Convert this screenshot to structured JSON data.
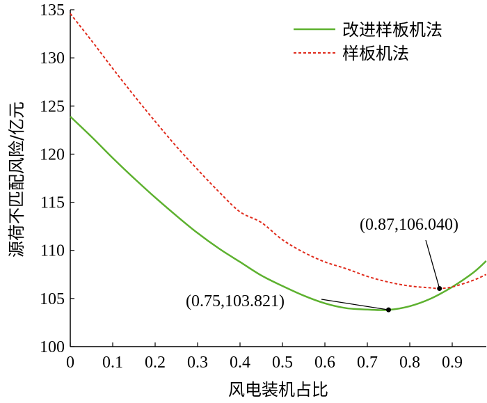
{
  "chart_data": {
    "type": "line",
    "xlabel": "风电装机占比",
    "ylabel": "源荷不匹配风险/亿元",
    "xlim": [
      0,
      0.98
    ],
    "ylim": [
      100,
      135
    ],
    "xticks": [
      "0",
      "0.1",
      "0.2",
      "0.3",
      "0.4",
      "0.5",
      "0.6",
      "0.7",
      "0.8",
      "0.9"
    ],
    "yticks": [
      "100",
      "105",
      "110",
      "115",
      "120",
      "125",
      "130",
      "135"
    ],
    "grid": false,
    "legend": "top-right",
    "series": [
      {
        "name": "改进样板机法",
        "color": "#5db12f",
        "style": "solid",
        "x": [
          0,
          0.05,
          0.1,
          0.15,
          0.2,
          0.25,
          0.3,
          0.35,
          0.4,
          0.45,
          0.5,
          0.55,
          0.6,
          0.65,
          0.7,
          0.75,
          0.8,
          0.85,
          0.9,
          0.95,
          0.98
        ],
        "y": [
          123.9,
          121.8,
          119.6,
          117.5,
          115.5,
          113.6,
          111.8,
          110.2,
          108.8,
          107.4,
          106.3,
          105.3,
          104.5,
          104.0,
          103.85,
          103.82,
          104.2,
          105.0,
          106.2,
          107.7,
          108.9
        ]
      },
      {
        "name": "样板机法",
        "color": "#e02b1c",
        "style": "dashed",
        "x": [
          0,
          0.05,
          0.1,
          0.15,
          0.2,
          0.25,
          0.3,
          0.35,
          0.4,
          0.45,
          0.5,
          0.55,
          0.6,
          0.65,
          0.7,
          0.75,
          0.8,
          0.85,
          0.87,
          0.9,
          0.95,
          0.98
        ],
        "y": [
          134.6,
          131.8,
          128.9,
          126.1,
          123.4,
          120.8,
          118.4,
          116.1,
          114.0,
          112.9,
          111.1,
          109.8,
          108.8,
          108.1,
          107.3,
          106.7,
          106.3,
          106.1,
          106.04,
          106.2,
          106.9,
          107.5
        ]
      }
    ],
    "annotations": [
      {
        "label": "(0.87,106.040)",
        "x": 0.87,
        "y": 106.04
      },
      {
        "label": "(0.75,103.821)",
        "x": 0.75,
        "y": 103.821
      }
    ]
  }
}
